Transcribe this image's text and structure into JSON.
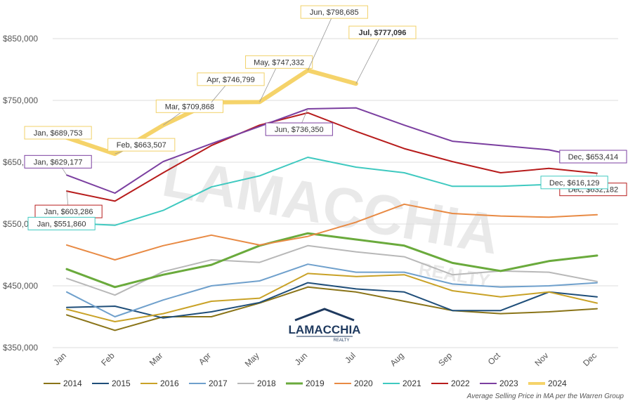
{
  "chart_data": {
    "type": "line",
    "categories": [
      "Jan",
      "Feb",
      "Mar",
      "Apr",
      "May",
      "Jun",
      "Jul",
      "Aug",
      "Sep",
      "Oct",
      "Nov",
      "Dec"
    ],
    "ylim": [
      350000,
      850000
    ],
    "yticks": [
      350000,
      450000,
      550000,
      650000,
      750000,
      850000
    ],
    "ytick_labels": [
      "$350,000",
      "$450,000",
      "$550,000",
      "$650,000",
      "$750,000",
      "$850,000"
    ],
    "grid": "horizontal",
    "legend_position": "bottom",
    "series": [
      {
        "name": "2014",
        "color": "#8a7418",
        "width": 2,
        "values": [
          403000,
          378000,
          400000,
          400000,
          422000,
          448000,
          440000,
          425000,
          410000,
          405000,
          408000,
          413000
        ]
      },
      {
        "name": "2015",
        "color": "#1f4e79",
        "width": 2,
        "values": [
          415000,
          417000,
          398000,
          408000,
          423000,
          455000,
          445000,
          440000,
          410000,
          410000,
          440000,
          432000
        ]
      },
      {
        "name": "2016",
        "color": "#c9a227",
        "width": 2,
        "values": [
          412000,
          392000,
          405000,
          425000,
          430000,
          470000,
          465000,
          468000,
          442000,
          432000,
          440000,
          422000
        ]
      },
      {
        "name": "2017",
        "color": "#6fa0cc",
        "width": 2,
        "values": [
          440000,
          400000,
          427000,
          450000,
          458000,
          485000,
          472000,
          472000,
          453000,
          448000,
          450000,
          455000
        ]
      },
      {
        "name": "2018",
        "color": "#b8b8b8",
        "width": 2,
        "values": [
          462000,
          435000,
          473000,
          492000,
          488000,
          515000,
          505000,
          497000,
          468000,
          474000,
          472000,
          457000
        ]
      },
      {
        "name": "2019",
        "color": "#6aaa3c",
        "width": 3,
        "values": [
          477000,
          448000,
          468000,
          484000,
          515000,
          535000,
          525000,
          515000,
          487000,
          474000,
          490000,
          499000
        ]
      },
      {
        "name": "2020",
        "color": "#e88a44",
        "width": 2,
        "values": [
          516000,
          492000,
          515000,
          532000,
          516000,
          530000,
          553000,
          582000,
          567000,
          563000,
          561000,
          565000
        ]
      },
      {
        "name": "2021",
        "color": "#3fc9c0",
        "width": 2,
        "values": [
          551860,
          548000,
          572000,
          610000,
          628000,
          658000,
          642000,
          633000,
          611000,
          611000,
          614000,
          616129
        ]
      },
      {
        "name": "2022",
        "color": "#b71c1c",
        "width": 2,
        "values": [
          603286,
          587000,
          633000,
          677000,
          710000,
          730000,
          700000,
          672000,
          651000,
          633000,
          640000,
          632182
        ]
      },
      {
        "name": "2023",
        "color": "#7b3fa0",
        "width": 2,
        "values": [
          629177,
          600000,
          651000,
          680000,
          708000,
          736350,
          738000,
          710000,
          684000,
          677000,
          670000,
          653414
        ]
      },
      {
        "name": "2024",
        "color": "#f5d36a",
        "width": 6,
        "values": [
          689753,
          663507,
          709868,
          746799,
          747332,
          798685,
          777096,
          null,
          null,
          null,
          null,
          null
        ]
      }
    ],
    "annotations": [
      {
        "text": "Jan, $689,753",
        "category": "Jan",
        "value": 689753,
        "color": "#f1d169",
        "bold": false
      },
      {
        "text": "Feb, $663,507",
        "category": "Feb",
        "value": 663507,
        "color": "#f1d169",
        "bold": false
      },
      {
        "text": "Mar, $709,868",
        "category": "Mar",
        "value": 709868,
        "color": "#f1d169",
        "bold": false
      },
      {
        "text": "Apr, $746,799",
        "category": "Apr",
        "value": 746799,
        "color": "#f1d169",
        "bold": false
      },
      {
        "text": "May, $747,332",
        "category": "May",
        "value": 747332,
        "color": "#f1d169",
        "bold": false
      },
      {
        "text": "Jun, $798,685",
        "category": "Jun",
        "value": 798685,
        "color": "#f1d169",
        "bold": false
      },
      {
        "text": "Jul, $777,096",
        "category": "Jul",
        "value": 777096,
        "color": "#f1d169",
        "bold": true
      },
      {
        "text": "Jan, $629,177",
        "category": "Jan",
        "value": 629177,
        "color": "#7b3fa0",
        "bold": false
      },
      {
        "text": "Jun, $736,350",
        "category": "Jun",
        "value": 736350,
        "color": "#7b3fa0",
        "bold": false
      },
      {
        "text": "Dec, $653,414",
        "category": "Dec",
        "value": 653414,
        "color": "#7b3fa0",
        "bold": false
      },
      {
        "text": "Jan, $603,286",
        "category": "Jan",
        "value": 603286,
        "color": "#b71c1c",
        "bold": false
      },
      {
        "text": "Dec, $632,182",
        "category": "Dec",
        "value": 632182,
        "color": "#b71c1c",
        "bold": false
      },
      {
        "text": "Jan, $551,860",
        "category": "Jan",
        "value": 551860,
        "color": "#3fc9c0",
        "bold": false
      },
      {
        "text": "Dec, $616,129",
        "category": "Dec",
        "value": 616129,
        "color": "#3fc9c0",
        "bold": false
      }
    ],
    "source_note": "Average Selling Price in MA per the Warren Group"
  },
  "watermark": {
    "text": "LAMACCHIA",
    "sub": "REALTY"
  },
  "logo": {
    "text": "LAMACCHIA",
    "sub": "REALTY",
    "color": "#1f3a5f"
  }
}
